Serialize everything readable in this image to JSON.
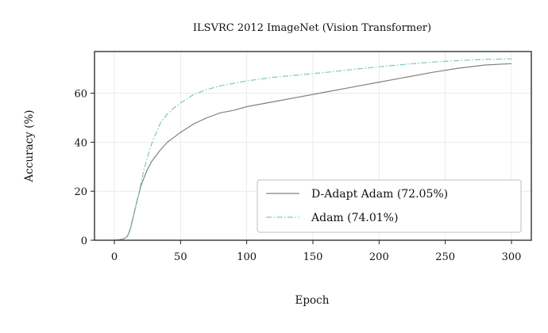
{
  "chart_data": {
    "type": "line",
    "title": "ILSVRC 2012 ImageNet (Vision Transformer)",
    "xlabel": "Epoch",
    "ylabel": "Accuracy (%)",
    "xlim": [
      -15,
      315
    ],
    "ylim": [
      0,
      77
    ],
    "xticks": [
      0,
      50,
      100,
      150,
      200,
      250,
      300
    ],
    "yticks": [
      0,
      20,
      40,
      60
    ],
    "grid": true,
    "legend_position": "lower-right",
    "series": [
      {
        "name": "D-Adapt Adam (72.05%)",
        "color": "#808080",
        "style": "solid",
        "x": [
          0,
          5,
          8,
          10,
          12,
          14,
          16,
          18,
          20,
          22,
          25,
          28,
          30,
          35,
          40,
          45,
          50,
          60,
          70,
          80,
          90,
          100,
          120,
          140,
          160,
          180,
          200,
          220,
          240,
          260,
          280,
          300
        ],
        "y": [
          0,
          0.3,
          0.8,
          1.8,
          4.5,
          9,
          13.5,
          18,
          22,
          25,
          29,
          32,
          33.5,
          37,
          40,
          42,
          44,
          47.5,
          50,
          52,
          53,
          54.5,
          56.5,
          58.5,
          60.5,
          62.5,
          64.5,
          66.5,
          68.5,
          70.2,
          71.5,
          72.05
        ]
      },
      {
        "name": "Adam (74.01%)",
        "color": "#7fc6c6",
        "style": "dashdot",
        "x": [
          0,
          5,
          8,
          10,
          12,
          14,
          16,
          18,
          20,
          22,
          25,
          28,
          30,
          35,
          40,
          45,
          50,
          60,
          70,
          80,
          90,
          100,
          120,
          140,
          160,
          180,
          200,
          220,
          240,
          260,
          280,
          300
        ],
        "y": [
          0,
          0.3,
          0.8,
          1.5,
          4,
          8.5,
          13.5,
          18,
          23,
          28,
          34,
          39,
          42,
          48,
          51.5,
          54,
          56,
          59.5,
          61.5,
          63,
          64,
          65,
          66.5,
          67.5,
          68.5,
          69.7,
          70.8,
          71.8,
          72.7,
          73.3,
          73.8,
          74.01
        ]
      }
    ]
  }
}
